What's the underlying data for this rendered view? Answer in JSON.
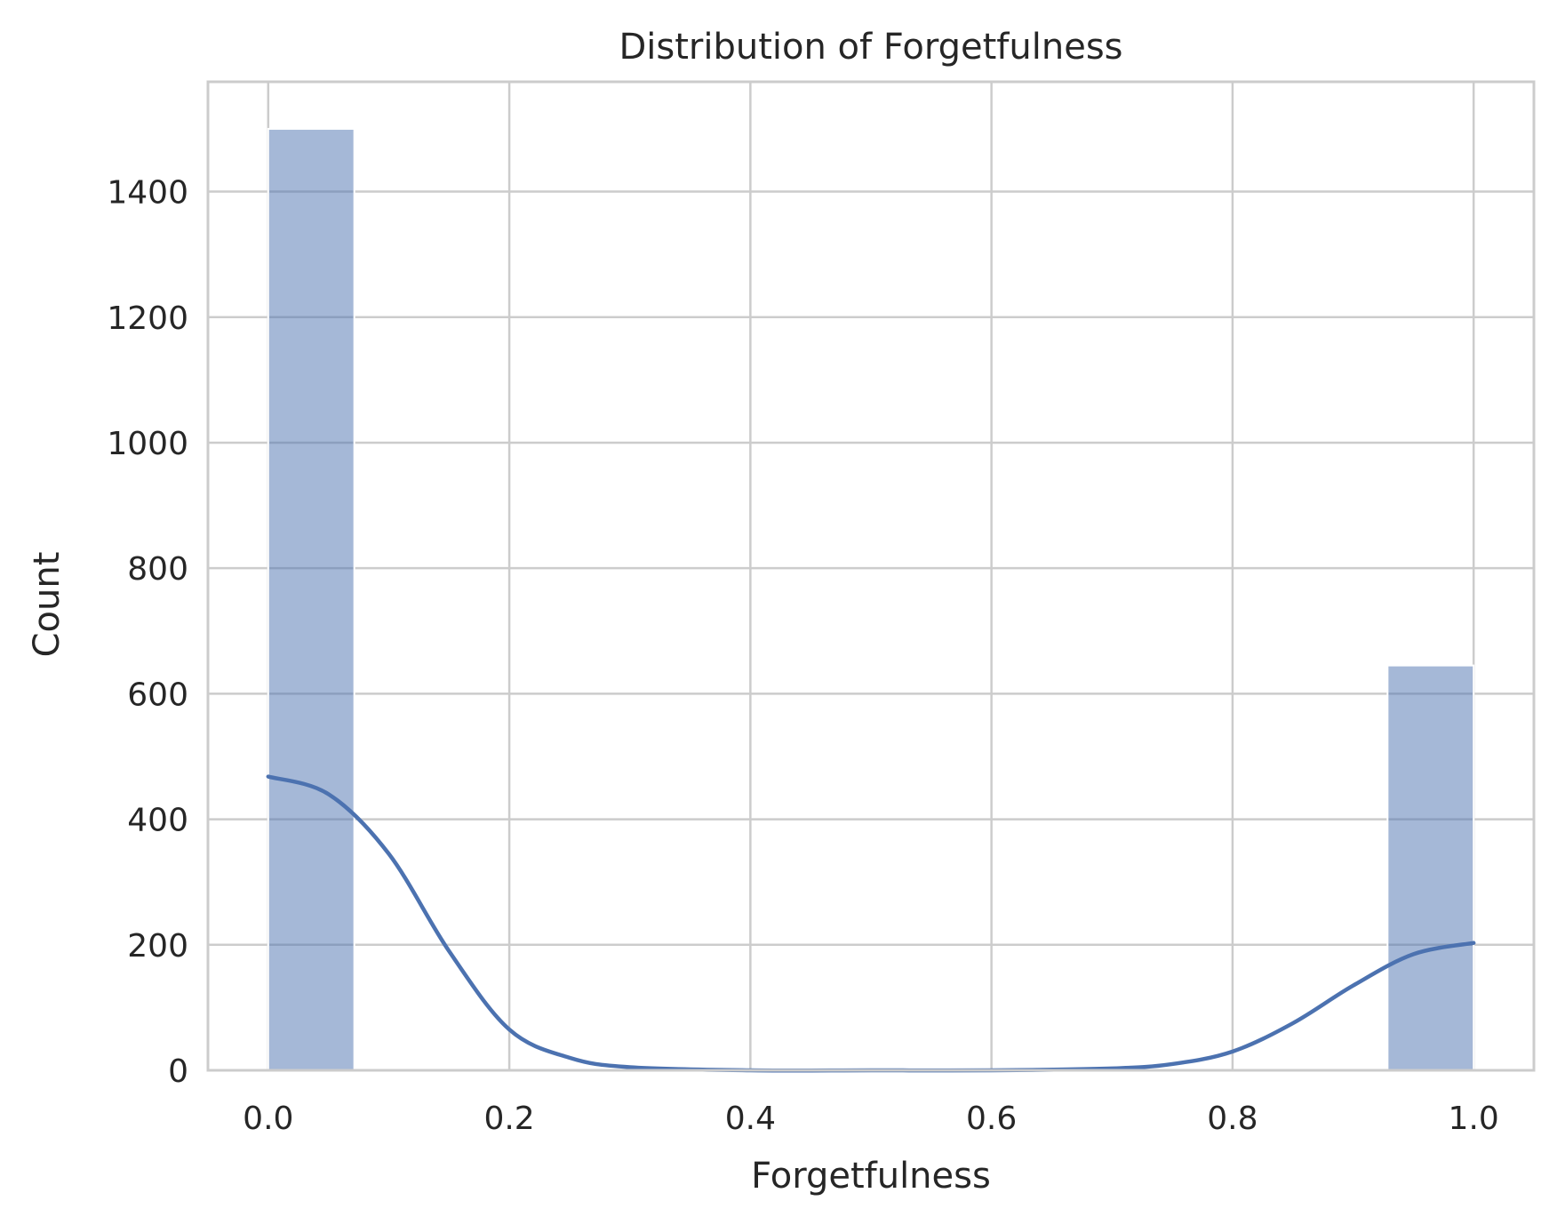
{
  "chart_data": {
    "type": "bar",
    "title": "Distribution of Forgetfulness",
    "xlabel": "Forgetfulness",
    "ylabel": "Count",
    "xlim": [
      -0.05,
      1.05
    ],
    "ylim": [
      0,
      1575
    ],
    "x_ticks": [
      "0.0",
      "0.2",
      "0.4",
      "0.6",
      "0.8",
      "1.0"
    ],
    "x_tick_values": [
      0.0,
      0.2,
      0.4,
      0.6,
      0.8,
      1.0
    ],
    "y_ticks": [
      "0",
      "200",
      "400",
      "600",
      "800",
      "1000",
      "1200",
      "1400"
    ],
    "y_tick_values": [
      0,
      200,
      400,
      600,
      800,
      1000,
      1200,
      1400
    ],
    "bins": [
      {
        "x0": 0.0,
        "x1": 0.0714,
        "count": 1500
      },
      {
        "x0": 0.0714,
        "x1": 0.1429,
        "count": 0
      },
      {
        "x0": 0.1429,
        "x1": 0.2143,
        "count": 0
      },
      {
        "x0": 0.2143,
        "x1": 0.2857,
        "count": 0
      },
      {
        "x0": 0.2857,
        "x1": 0.3571,
        "count": 0
      },
      {
        "x0": 0.3571,
        "x1": 0.4286,
        "count": 0
      },
      {
        "x0": 0.4286,
        "x1": 0.5,
        "count": 0
      },
      {
        "x0": 0.5,
        "x1": 0.5714,
        "count": 0
      },
      {
        "x0": 0.5714,
        "x1": 0.6429,
        "count": 0
      },
      {
        "x0": 0.6429,
        "x1": 0.7143,
        "count": 0
      },
      {
        "x0": 0.7143,
        "x1": 0.7857,
        "count": 0
      },
      {
        "x0": 0.7857,
        "x1": 0.8571,
        "count": 0
      },
      {
        "x0": 0.8571,
        "x1": 0.9286,
        "count": 0
      },
      {
        "x0": 0.9286,
        "x1": 1.0,
        "count": 645
      }
    ],
    "kde": {
      "x": [
        0.0,
        0.05,
        0.1,
        0.15,
        0.2,
        0.25,
        0.3,
        0.4,
        0.5,
        0.6,
        0.7,
        0.75,
        0.8,
        0.85,
        0.9,
        0.95,
        1.0
      ],
      "y": [
        468,
        440,
        345,
        190,
        65,
        20,
        5,
        0,
        0,
        0,
        3,
        10,
        30,
        75,
        135,
        185,
        203
      ]
    },
    "grid": true,
    "legend": "none",
    "colors": {
      "bar": "#4c72b0",
      "bar_opacity": 0.5,
      "kde": "#4c72b0",
      "grid": "#cccccc",
      "spine": "#cccccc",
      "text": "#262626"
    }
  }
}
